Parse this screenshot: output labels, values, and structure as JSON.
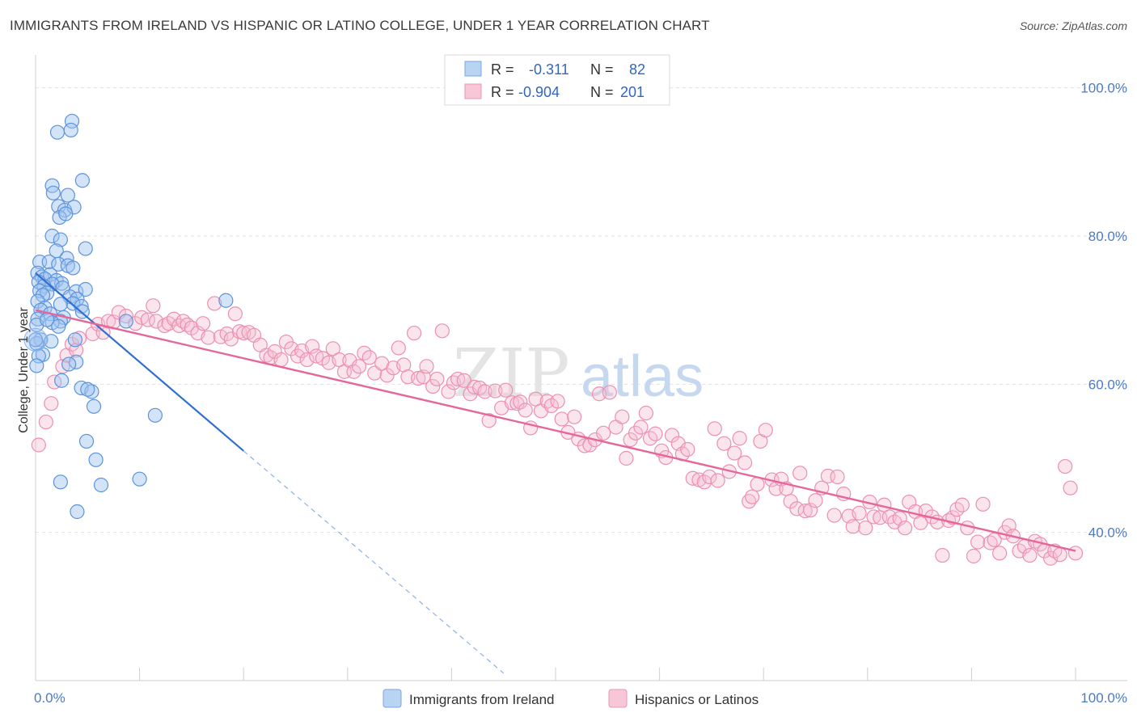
{
  "title": "IMMIGRANTS FROM IRELAND VS HISPANIC OR LATINO COLLEGE, UNDER 1 YEAR CORRELATION CHART",
  "source": "Source: ZipAtlas.com",
  "watermark": {
    "zip": "ZIP",
    "atlas": "atlas"
  },
  "colors": {
    "blue": "#4a86d8",
    "blue_fill": "#a9c8f0",
    "pink": "#e86f9a",
    "pink_fill": "#f6bfd2",
    "axis_text": "#4a7bc4"
  },
  "legend": {
    "rows": [
      {
        "r_label": "R =",
        "r_value": "-0.311",
        "n_label": "N =",
        "n_value": "82"
      },
      {
        "r_label": "R =",
        "r_value": "-0.904",
        "n_label": "N =",
        "n_value": "201"
      }
    ]
  },
  "chart_data": {
    "type": "scatter",
    "title": "IMMIGRANTS FROM IRELAND VS HISPANIC OR LATINO COLLEGE, UNDER 1 YEAR CORRELATION CHART",
    "xlabel": "",
    "ylabel": "College, Under 1 year",
    "xlim": [
      0,
      100
    ],
    "ylim": [
      20,
      104
    ],
    "x_tick_labels": [
      "0.0%",
      "100.0%"
    ],
    "y_ticks": [
      40,
      60,
      80,
      100
    ],
    "y_tick_labels": [
      "40.0%",
      "60.0%",
      "80.0%",
      "100.0%"
    ],
    "grid": "horizontal dashed",
    "legend_position": "top-center",
    "series": [
      {
        "name": "Immigrants from Ireland",
        "R": -0.311,
        "N": 82,
        "trend": {
          "x1": 0,
          "y1": 75,
          "x2": 20,
          "y2": 51,
          "dashed_to_x": 45
        },
        "points": [
          [
            3.5,
            95.5
          ],
          [
            2.1,
            94
          ],
          [
            3.4,
            94.3
          ],
          [
            4.5,
            87.5
          ],
          [
            1.6,
            86.8
          ],
          [
            1.7,
            85.8
          ],
          [
            3.1,
            85.5
          ],
          [
            2.2,
            84
          ],
          [
            2.8,
            83.5
          ],
          [
            3.7,
            83.9
          ],
          [
            2.3,
            82.5
          ],
          [
            2.9,
            83
          ],
          [
            1.6,
            80
          ],
          [
            2.4,
            79.5
          ],
          [
            4.8,
            78.3
          ],
          [
            2.0,
            78
          ],
          [
            3.0,
            77
          ],
          [
            0.4,
            76.5
          ],
          [
            1.3,
            76.5
          ],
          [
            2.2,
            76.2
          ],
          [
            3.1,
            76
          ],
          [
            3.6,
            75.7
          ],
          [
            0.2,
            75
          ],
          [
            0.6,
            74.5
          ],
          [
            1.4,
            74.8
          ],
          [
            0.9,
            74.2
          ],
          [
            2.0,
            74
          ],
          [
            2.5,
            73.6
          ],
          [
            0.3,
            73.8
          ],
          [
            1.6,
            73.5
          ],
          [
            0.8,
            73.2
          ],
          [
            2.6,
            73
          ],
          [
            3.9,
            72.5
          ],
          [
            4.8,
            72.8
          ],
          [
            0.4,
            72.6
          ],
          [
            1.1,
            72.3
          ],
          [
            0.7,
            72
          ],
          [
            3.3,
            71.8
          ],
          [
            4.0,
            71.5
          ],
          [
            0.2,
            71.2
          ],
          [
            3.6,
            70.9
          ],
          [
            2.4,
            70.8
          ],
          [
            4.4,
            70.5
          ],
          [
            0.9,
            70.3
          ],
          [
            0.5,
            70
          ],
          [
            4.5,
            69.8
          ],
          [
            1.4,
            69.5
          ],
          [
            2.7,
            69
          ],
          [
            0.2,
            68.8
          ],
          [
            2.4,
            68.5
          ],
          [
            1.6,
            68.3
          ],
          [
            8.7,
            68.5
          ],
          [
            18.3,
            71.3
          ],
          [
            0.1,
            68
          ],
          [
            1.1,
            68.7
          ],
          [
            2.2,
            67.8
          ],
          [
            0.5,
            66
          ],
          [
            1.5,
            65.8
          ],
          [
            3.8,
            66
          ],
          [
            0.7,
            64
          ],
          [
            0.1,
            65.5
          ],
          [
            0.3,
            63.8
          ],
          [
            3.9,
            63
          ],
          [
            0.1,
            62.5
          ],
          [
            3.2,
            62.7
          ],
          [
            2.5,
            60.5
          ],
          [
            4.4,
            59.5
          ],
          [
            5.4,
            59
          ],
          [
            5.0,
            59.3
          ],
          [
            5.6,
            57
          ],
          [
            11.5,
            55.8
          ],
          [
            4.9,
            52.3
          ],
          [
            5.8,
            49.8
          ],
          [
            2.4,
            46.8
          ],
          [
            6.3,
            46.4
          ],
          [
            10.0,
            47.2
          ],
          [
            4.0,
            42.8
          ],
          [
            0.0,
            66.0
          ]
        ]
      },
      {
        "name": "Hispanics or Latinos",
        "R": -0.904,
        "N": 201,
        "trend": {
          "x1": 0,
          "y1": 70,
          "x2": 100,
          "y2": 37.5
        },
        "points": [
          [
            0.3,
            51.8
          ],
          [
            1.0,
            54.9
          ],
          [
            1.5,
            57.4
          ],
          [
            1.8,
            60.3
          ],
          [
            2.6,
            62.4
          ],
          [
            3.0,
            63.9
          ],
          [
            3.5,
            65.4
          ],
          [
            3.9,
            64.6
          ],
          [
            4.2,
            66.2
          ],
          [
            5.5,
            66.8
          ],
          [
            6.0,
            68.1
          ],
          [
            6.5,
            67
          ],
          [
            7.0,
            68.5
          ],
          [
            7.5,
            68.4
          ],
          [
            8.0,
            69.7
          ],
          [
            8.7,
            69.2
          ],
          [
            9.6,
            68.2
          ],
          [
            10.2,
            69.0
          ],
          [
            10.8,
            68.7
          ],
          [
            11.3,
            70.6
          ],
          [
            11.6,
            68.5
          ],
          [
            12.4,
            67.9
          ],
          [
            12.8,
            68.2
          ],
          [
            13.3,
            68.8
          ],
          [
            13.8,
            67.9
          ],
          [
            14.2,
            68.5
          ],
          [
            14.6,
            68
          ],
          [
            15.0,
            67.6
          ],
          [
            15.6,
            66.9
          ],
          [
            16.1,
            68.2
          ],
          [
            16.6,
            66.3
          ],
          [
            17.2,
            70.9
          ],
          [
            17.8,
            66.4
          ],
          [
            18.4,
            66.8
          ],
          [
            18.8,
            66.1
          ],
          [
            19.2,
            69.5
          ],
          [
            19.6,
            67.1
          ],
          [
            20.0,
            66.9
          ],
          [
            20.5,
            67.0
          ],
          [
            21.0,
            66.6
          ],
          [
            21.6,
            65.3
          ],
          [
            22.2,
            63.9
          ],
          [
            22.6,
            63.6
          ],
          [
            23.0,
            64.4
          ],
          [
            23.6,
            63.3
          ],
          [
            24.1,
            65.7
          ],
          [
            24.6,
            64.8
          ],
          [
            25.2,
            63.8
          ],
          [
            25.6,
            64.5
          ],
          [
            26.1,
            63.3
          ],
          [
            26.6,
            65.1
          ],
          [
            27.0,
            63.8
          ],
          [
            27.6,
            63.5
          ],
          [
            28.2,
            62.9
          ],
          [
            28.6,
            64.8
          ],
          [
            29.2,
            63.3
          ],
          [
            29.7,
            61.7
          ],
          [
            30.2,
            63.2
          ],
          [
            30.6,
            61.7
          ],
          [
            31.1,
            62.4
          ],
          [
            31.6,
            64.2
          ],
          [
            32.1,
            63.6
          ],
          [
            32.6,
            61.5
          ],
          [
            33.3,
            62.8
          ],
          [
            33.8,
            61.2
          ],
          [
            34.4,
            62.2
          ],
          [
            34.9,
            64.9
          ],
          [
            35.4,
            62.6
          ],
          [
            35.8,
            61.0
          ],
          [
            36.4,
            66.9
          ],
          [
            36.8,
            60.8
          ],
          [
            37.3,
            61.0
          ],
          [
            37.6,
            62.4
          ],
          [
            38.2,
            59.7
          ],
          [
            38.6,
            60.7
          ],
          [
            39.1,
            67.2
          ],
          [
            39.7,
            59.0
          ],
          [
            40.2,
            60.2
          ],
          [
            40.6,
            60.7
          ],
          [
            41.2,
            60.5
          ],
          [
            41.8,
            58.7
          ],
          [
            42.2,
            59.6
          ],
          [
            42.7,
            59.5
          ],
          [
            43.2,
            59.0
          ],
          [
            43.6,
            55.1
          ],
          [
            44.2,
            59.1
          ],
          [
            44.8,
            56.8
          ],
          [
            45.2,
            59.2
          ],
          [
            45.8,
            57.5
          ],
          [
            46.3,
            57.4
          ],
          [
            46.6,
            57.6
          ],
          [
            47.1,
            56.5
          ],
          [
            47.6,
            54.1
          ],
          [
            48.1,
            58.0
          ],
          [
            48.6,
            56.4
          ],
          [
            49.2,
            57.7
          ],
          [
            49.6,
            57.1
          ],
          [
            50.2,
            57.7
          ],
          [
            50.6,
            55.3
          ],
          [
            51.2,
            53.5
          ],
          [
            51.8,
            55.6
          ],
          [
            52.2,
            52.6
          ],
          [
            52.8,
            51.7
          ],
          [
            53.3,
            51.8
          ],
          [
            53.8,
            52.5
          ],
          [
            54.2,
            58.7
          ],
          [
            54.6,
            53.4
          ],
          [
            55.2,
            58.9
          ],
          [
            55.8,
            54.2
          ],
          [
            56.4,
            55.6
          ],
          [
            56.8,
            50.0
          ],
          [
            57.2,
            52.5
          ],
          [
            57.7,
            53.4
          ],
          [
            58.2,
            54.2
          ],
          [
            58.7,
            56.1
          ],
          [
            59.1,
            52.7
          ],
          [
            59.6,
            53.3
          ],
          [
            60.2,
            51.0
          ],
          [
            60.6,
            50.1
          ],
          [
            61.2,
            53.1
          ],
          [
            61.8,
            52.0
          ],
          [
            62.2,
            50.6
          ],
          [
            62.7,
            51.2
          ],
          [
            63.2,
            47.3
          ],
          [
            63.8,
            47.1
          ],
          [
            64.3,
            46.8
          ],
          [
            64.8,
            47.5
          ],
          [
            65.3,
            54.0
          ],
          [
            65.6,
            47.0
          ],
          [
            66.2,
            52.0
          ],
          [
            66.7,
            48.2
          ],
          [
            67.2,
            50.7
          ],
          [
            67.7,
            52.7
          ],
          [
            68.2,
            49.4
          ],
          [
            68.6,
            44.2
          ],
          [
            68.9,
            44.8
          ],
          [
            69.4,
            46.5
          ],
          [
            69.7,
            52.3
          ],
          [
            70.2,
            53.8
          ],
          [
            70.8,
            47.1
          ],
          [
            71.2,
            45.9
          ],
          [
            71.7,
            47.2
          ],
          [
            72.2,
            45.9
          ],
          [
            72.6,
            44.2
          ],
          [
            73.2,
            43.2
          ],
          [
            73.5,
            48.0
          ],
          [
            74.0,
            42.9
          ],
          [
            74.5,
            43.0
          ],
          [
            75.0,
            44.3
          ],
          [
            75.6,
            46.0
          ],
          [
            76.2,
            47.6
          ],
          [
            76.8,
            42.3
          ],
          [
            77.1,
            47.5
          ],
          [
            77.7,
            45.2
          ],
          [
            78.2,
            42.2
          ],
          [
            78.6,
            40.8
          ],
          [
            79.2,
            42.6
          ],
          [
            79.8,
            40.6
          ],
          [
            80.2,
            44.1
          ],
          [
            80.6,
            42.1
          ],
          [
            81.2,
            42.0
          ],
          [
            81.6,
            43.7
          ],
          [
            82.1,
            42.1
          ],
          [
            82.6,
            41.4
          ],
          [
            83.1,
            41.9
          ],
          [
            83.6,
            40.6
          ],
          [
            84.0,
            44.1
          ],
          [
            84.6,
            42.8
          ],
          [
            85.1,
            41.3
          ],
          [
            85.6,
            42.9
          ],
          [
            86.2,
            42.1
          ],
          [
            86.7,
            41.4
          ],
          [
            87.2,
            36.9
          ],
          [
            87.8,
            41.6
          ],
          [
            88.2,
            42.0
          ],
          [
            88.6,
            43.1
          ],
          [
            89.1,
            43.7
          ],
          [
            89.6,
            40.6
          ],
          [
            90.2,
            36.8
          ],
          [
            90.6,
            38.7
          ],
          [
            91.1,
            43.8
          ],
          [
            91.8,
            38.6
          ],
          [
            92.2,
            39.0
          ],
          [
            92.7,
            37.2
          ],
          [
            93.2,
            40.0
          ],
          [
            93.6,
            40.9
          ],
          [
            94.0,
            39.5
          ],
          [
            94.6,
            37.5
          ],
          [
            95.1,
            38.1
          ],
          [
            95.6,
            36.9
          ],
          [
            96.1,
            38.8
          ],
          [
            96.6,
            38.4
          ],
          [
            97.0,
            37.5
          ],
          [
            97.6,
            36.5
          ],
          [
            98.0,
            37.5
          ],
          [
            98.5,
            37.0
          ],
          [
            99.0,
            48.9
          ],
          [
            99.5,
            46.0
          ],
          [
            100.0,
            37.2
          ]
        ]
      }
    ]
  },
  "bottom_legend": {
    "items": [
      {
        "label": "Immigrants from Ireland"
      },
      {
        "label": "Hispanics or Latinos"
      }
    ]
  }
}
